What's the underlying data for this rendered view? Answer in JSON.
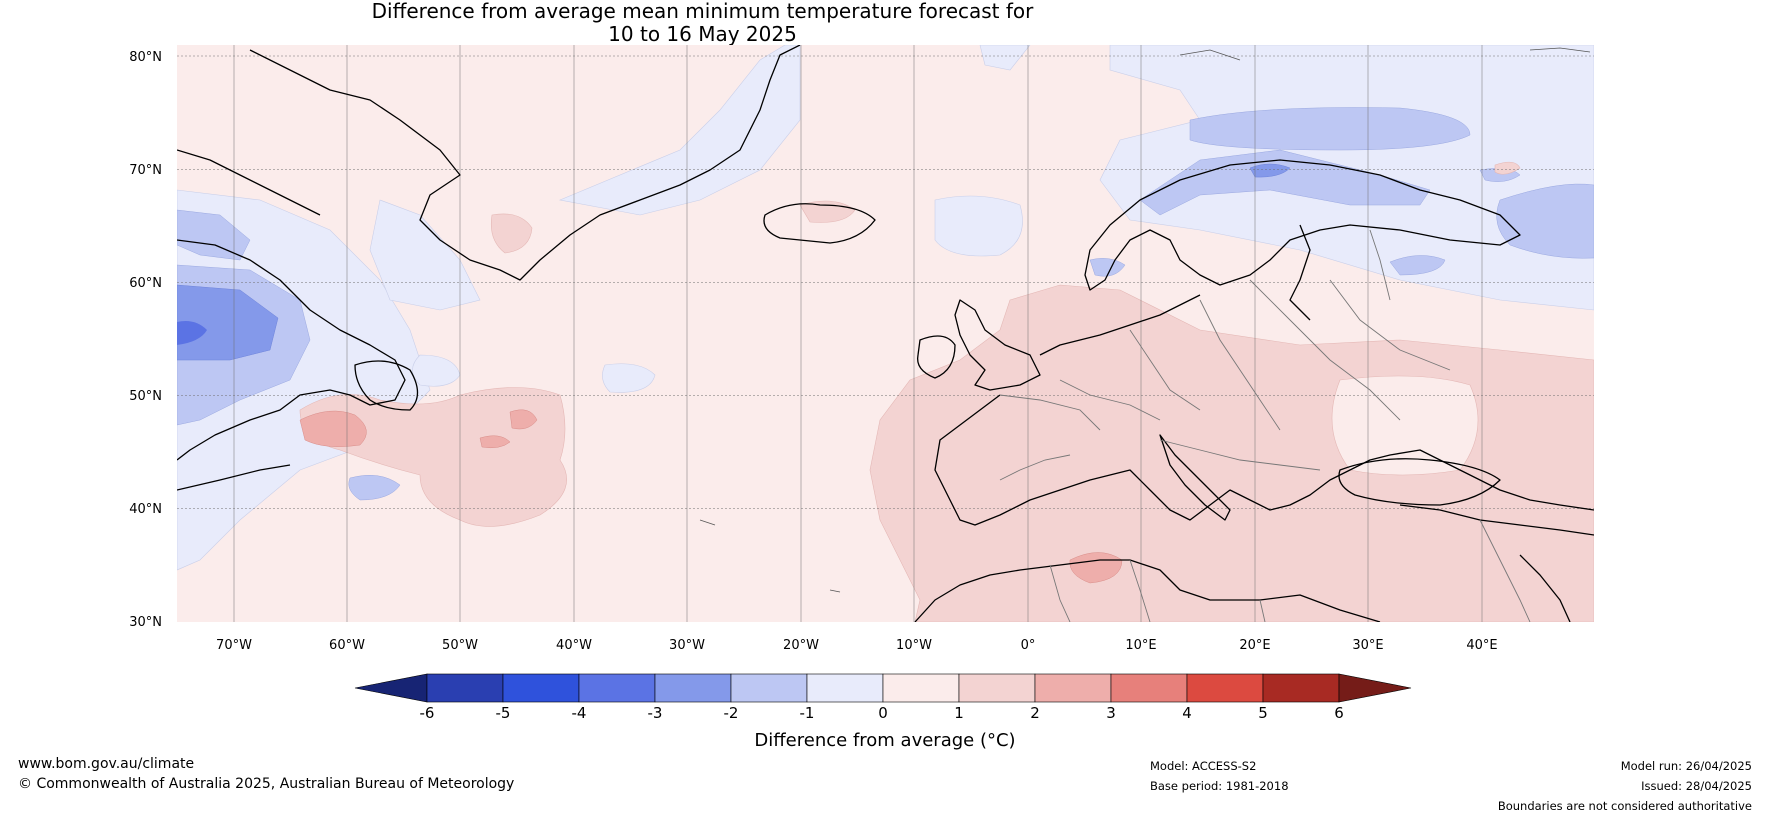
{
  "header": {
    "title_line1": "Difference from average mean minimum temperature forecast for",
    "title_line2": "10 to 16 May 2025"
  },
  "map": {
    "latitude_labels": [
      "80°N",
      "70°N",
      "60°N",
      "50°N",
      "40°N",
      "30°N"
    ],
    "longitude_labels": [
      "70°W",
      "60°W",
      "50°W",
      "40°W",
      "30°W",
      "20°W",
      "10°W",
      "0°",
      "10°E",
      "20°E",
      "30°E",
      "40°E"
    ],
    "region": "North Atlantic and Europe",
    "lon_range": [
      -75,
      50
    ],
    "lat_range": [
      30,
      81
    ]
  },
  "colorbar": {
    "label": "Difference from average (°C)",
    "ticks": [
      "-6",
      "-5",
      "-4",
      "-3",
      "-2",
      "-1",
      "0",
      "1",
      "2",
      "3",
      "4",
      "5",
      "6"
    ],
    "colors": [
      "#172474",
      "#2a3fb1",
      "#2f52dc",
      "#5b73e4",
      "#8499ea",
      "#bdc7f3",
      "#e8ebfb",
      "#fbeceb",
      "#f3d3d2",
      "#eeaeab",
      "#e7807b",
      "#dc4a40",
      "#a82a23",
      "#751c18"
    ]
  },
  "footer": {
    "website": "www.bom.gov.au/climate",
    "copyright": "© Commonwealth of Australia 2025, Australian Bureau of Meteorology",
    "model": "Model: ACCESS-S2",
    "base_period": "Base period: 1981-2018",
    "model_run": "Model run: 26/04/2025",
    "issued": "Issued: 28/04/2025",
    "disclaimer": "Boundaries are not considered authoritative"
  }
}
